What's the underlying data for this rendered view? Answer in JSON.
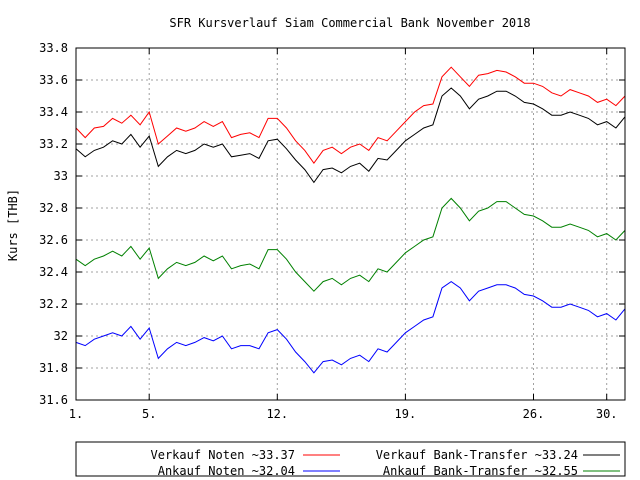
{
  "chart_data": {
    "type": "line",
    "title": "SFR Kursverlauf Siam Commercial Bank November 2018",
    "ylabel": "Kurs [THB]",
    "xlabel": "",
    "x_range": [
      1,
      31
    ],
    "ylim": [
      31.6,
      33.8
    ],
    "y_ticks": [
      "31.6",
      "31.8",
      "32",
      "32.2",
      "32.4",
      "32.6",
      "32.8",
      "33",
      "33.2",
      "33.4",
      "33.6",
      "33.8"
    ],
    "y_tick_values": [
      31.6,
      31.8,
      32.0,
      32.2,
      32.4,
      32.6,
      32.8,
      33.0,
      33.2,
      33.4,
      33.6,
      33.8
    ],
    "x_ticks": [
      "1.",
      "5.",
      "12.",
      "19.",
      "26.",
      "30."
    ],
    "x_tick_values": [
      1,
      5,
      12,
      19,
      26,
      30
    ],
    "grid": true,
    "legend_placement": "bottom",
    "x": [
      1,
      1.5,
      2,
      2.5,
      3,
      3.5,
      4,
      4.5,
      5,
      5.5,
      6,
      6.5,
      7,
      7.5,
      8,
      8.5,
      9,
      9.5,
      10,
      10.5,
      11,
      11.5,
      12,
      12.5,
      13,
      13.5,
      14,
      14.5,
      15,
      15.5,
      16,
      16.5,
      17,
      17.5,
      18,
      18.5,
      19,
      19.5,
      20,
      20.5,
      21,
      21.5,
      22,
      22.5,
      23,
      23.5,
      24,
      24.5,
      25,
      25.5,
      26,
      26.5,
      27,
      27.5,
      28,
      28.5,
      29,
      29.5,
      30,
      30.5,
      31
    ],
    "series": [
      {
        "name": "Verkauf Noten ~33.37",
        "color": "#ff0000",
        "values": [
          33.3,
          33.24,
          33.3,
          33.31,
          33.36,
          33.33,
          33.38,
          33.32,
          33.4,
          33.2,
          33.25,
          33.3,
          33.28,
          33.3,
          33.34,
          33.31,
          33.34,
          33.24,
          33.26,
          33.27,
          33.24,
          33.36,
          33.36,
          33.3,
          33.22,
          33.16,
          33.08,
          33.16,
          33.18,
          33.14,
          33.18,
          33.2,
          33.16,
          33.24,
          33.22,
          33.28,
          33.34,
          33.4,
          33.44,
          33.45,
          33.62,
          33.68,
          33.62,
          33.56,
          33.63,
          33.64,
          33.66,
          33.65,
          33.62,
          33.58,
          33.58,
          33.56,
          33.52,
          33.5,
          33.54,
          33.52,
          33.5,
          33.46,
          33.48,
          33.44,
          33.5
        ]
      },
      {
        "name": "Ankauf Noten ~32.04",
        "color": "#0000ff",
        "values": [
          31.96,
          31.94,
          31.98,
          32.0,
          32.02,
          32.0,
          32.06,
          31.98,
          32.05,
          31.86,
          31.92,
          31.96,
          31.94,
          31.96,
          31.99,
          31.97,
          32.0,
          31.92,
          31.94,
          31.94,
          31.92,
          32.02,
          32.04,
          31.98,
          31.9,
          31.84,
          31.77,
          31.84,
          31.85,
          31.82,
          31.86,
          31.88,
          31.84,
          31.92,
          31.9,
          31.96,
          32.02,
          32.06,
          32.1,
          32.12,
          32.3,
          32.34,
          32.3,
          32.22,
          32.28,
          32.3,
          32.32,
          32.32,
          32.3,
          32.26,
          32.25,
          32.22,
          32.18,
          32.18,
          32.2,
          32.18,
          32.16,
          32.12,
          32.14,
          32.1,
          32.17
        ]
      },
      {
        "name": "Verkauf Bank-Transfer ~33.24",
        "color": "#000000",
        "values": [
          33.17,
          33.12,
          33.16,
          33.18,
          33.22,
          33.2,
          33.26,
          33.18,
          33.25,
          33.06,
          33.12,
          33.16,
          33.14,
          33.16,
          33.2,
          33.18,
          33.2,
          33.12,
          33.13,
          33.14,
          33.11,
          33.22,
          33.23,
          33.17,
          33.1,
          33.04,
          32.96,
          33.04,
          33.05,
          33.02,
          33.06,
          33.08,
          33.03,
          33.11,
          33.1,
          33.16,
          33.22,
          33.26,
          33.3,
          33.32,
          33.5,
          33.55,
          33.5,
          33.42,
          33.48,
          33.5,
          33.53,
          33.53,
          33.5,
          33.46,
          33.45,
          33.42,
          33.38,
          33.38,
          33.4,
          33.38,
          33.36,
          33.32,
          33.34,
          33.3,
          33.37
        ]
      },
      {
        "name": "Ankauf Bank-Transfer ~32.55",
        "color": "#008000",
        "values": [
          32.48,
          32.44,
          32.48,
          32.5,
          32.53,
          32.5,
          32.56,
          32.48,
          32.55,
          32.36,
          32.42,
          32.46,
          32.44,
          32.46,
          32.5,
          32.47,
          32.5,
          32.42,
          32.44,
          32.45,
          32.42,
          32.54,
          32.54,
          32.48,
          32.4,
          32.34,
          32.28,
          32.34,
          32.36,
          32.32,
          32.36,
          32.38,
          32.34,
          32.42,
          32.4,
          32.46,
          32.52,
          32.56,
          32.6,
          32.62,
          32.8,
          32.86,
          32.8,
          32.72,
          32.78,
          32.8,
          32.84,
          32.84,
          32.8,
          32.76,
          32.75,
          32.72,
          32.68,
          32.68,
          32.7,
          32.68,
          32.66,
          32.62,
          32.64,
          32.6,
          32.66
        ]
      }
    ],
    "legend_order": [
      [
        "Verkauf Noten ~33.37",
        "Verkauf Bank-Transfer ~33.24"
      ],
      [
        "Ankauf Noten ~32.04",
        "Ankauf Bank-Transfer ~32.55"
      ]
    ]
  }
}
